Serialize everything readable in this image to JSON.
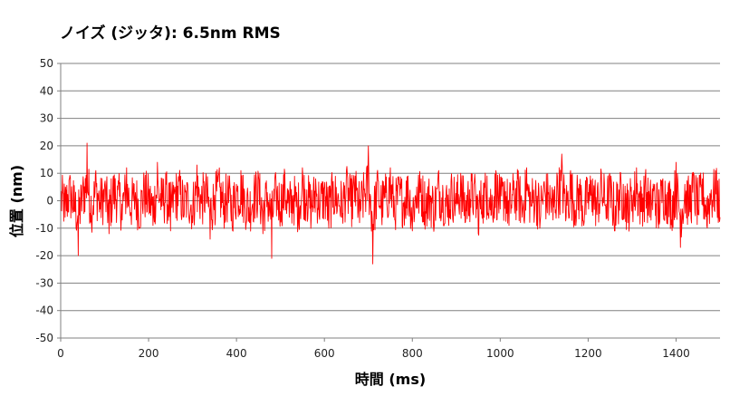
{
  "chart_data": {
    "type": "line",
    "title": "ノイズ (ジッタ): 6.5nm RMS",
    "xlabel": "時間 (ms)",
    "ylabel": "位置 (nm)",
    "xlim": [
      0,
      1500
    ],
    "ylim": [
      -50,
      50
    ],
    "xticks": [
      0,
      200,
      400,
      600,
      800,
      1000,
      1200,
      1400
    ],
    "xtick_labels": [
      "0",
      "200",
      "400",
      "600",
      "800",
      "1000",
      "1200",
      "1400"
    ],
    "yticks": [
      50,
      40,
      30,
      20,
      10,
      0,
      -10,
      -20,
      -30,
      -40,
      -50
    ],
    "ytick_labels": [
      "50",
      "40",
      "30",
      "20",
      "10",
      "0",
      "-10",
      "-20",
      "-30",
      "-40",
      "-50"
    ],
    "grid": "horizontal",
    "legend": "none",
    "series": [
      {
        "color": "#ff0000",
        "rms": 6.5,
        "n_points": 1500,
        "x": [
          0,
          10,
          20,
          30,
          40,
          50,
          60,
          70,
          80,
          90,
          100,
          110,
          120,
          130,
          140,
          150,
          160,
          170,
          180,
          190,
          200,
          210,
          220,
          230,
          240,
          250,
          260,
          270,
          280,
          290,
          300,
          310,
          320,
          330,
          340,
          350,
          360,
          370,
          380,
          390,
          400,
          410,
          420,
          430,
          440,
          450,
          460,
          470,
          480,
          490,
          500,
          510,
          520,
          530,
          540,
          550,
          560,
          570,
          580,
          590,
          600,
          610,
          620,
          630,
          640,
          650,
          660,
          670,
          680,
          690,
          700,
          710,
          720,
          730,
          740,
          750,
          760,
          770,
          780,
          790,
          800,
          810,
          820,
          830,
          840,
          850,
          860,
          870,
          880,
          890,
          900,
          910,
          920,
          930,
          940,
          950,
          960,
          970,
          980,
          990,
          1000,
          1010,
          1020,
          1030,
          1040,
          1050,
          1060,
          1070,
          1080,
          1090,
          1100,
          1110,
          1120,
          1130,
          1140,
          1150,
          1160,
          1170,
          1180,
          1190,
          1200,
          1210,
          1220,
          1230,
          1240,
          1250,
          1260,
          1270,
          1280,
          1290,
          1300,
          1310,
          1320,
          1330,
          1340,
          1350,
          1360,
          1370,
          1380,
          1390,
          1400,
          1410,
          1420,
          1430,
          1440,
          1450,
          1460,
          1470,
          1480,
          1490,
          1500
        ],
        "y": [
          2,
          -6,
          8,
          -4,
          -20,
          5,
          21,
          -8,
          11,
          -3,
          6,
          -12,
          9,
          4,
          -7,
          12,
          -5,
          3,
          -10,
          8,
          1,
          -9,
          14,
          -2,
          6,
          -11,
          5,
          9,
          -6,
          3,
          -8,
          13,
          -1,
          7,
          -14,
          2,
          10,
          -5,
          4,
          -9,
          6,
          11,
          -3,
          -8,
          5,
          9,
          -12,
          3,
          -21,
          7,
          -4,
          10,
          -6,
          2,
          -9,
          12,
          4,
          -7,
          8,
          -3,
          5,
          -10,
          7,
          1,
          -6,
          11,
          -2,
          9,
          -8,
          4,
          20,
          -23,
          10,
          -5,
          3,
          12,
          -7,
          6,
          -2,
          9,
          -11,
          5,
          8,
          -4,
          2,
          -9,
          11,
          3,
          -6,
          7,
          -1,
          10,
          -8,
          4,
          6,
          -12,
          2,
          9,
          -5,
          11,
          -3,
          7,
          -9,
          4,
          8,
          -6,
          12,
          -2,
          5,
          -10,
          7,
          3,
          -7,
          9,
          17,
          -6,
          11,
          -4,
          6,
          -9,
          3,
          8,
          -5,
          10,
          -2,
          7,
          -11,
          4,
          6,
          -8,
          2,
          12,
          -4,
          9,
          -6,
          5,
          -10,
          8,
          3,
          -7,
          14,
          -17,
          6,
          -3,
          10,
          -5,
          8,
          -9,
          4,
          11,
          -6
        ]
      }
    ]
  }
}
